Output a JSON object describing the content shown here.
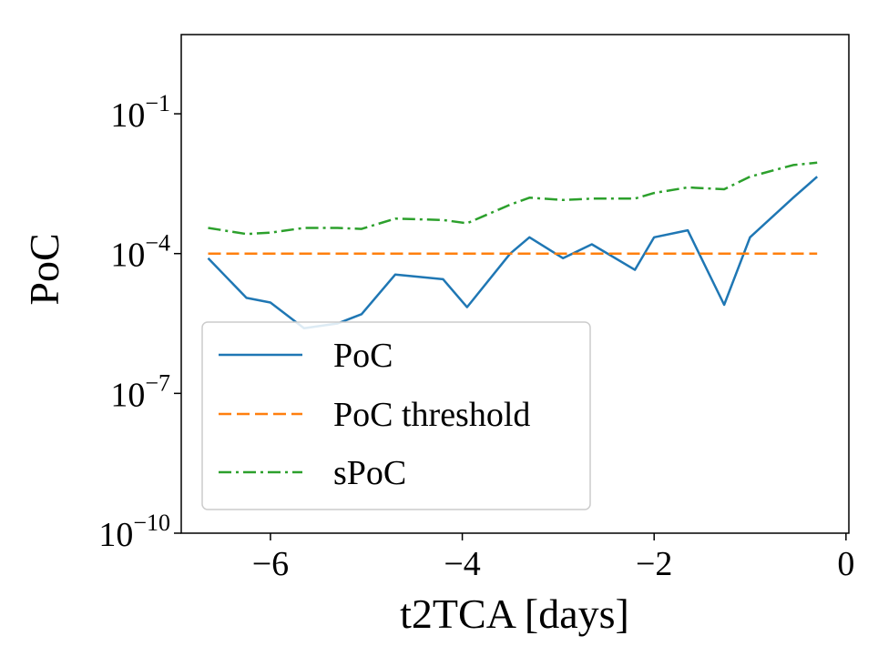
{
  "chart_data": {
    "type": "line",
    "title": "",
    "xlabel": "t2TCA [days]",
    "ylabel": "PoC",
    "yscale": "log",
    "xlim": [
      -6.93,
      0.03
    ],
    "ylim_log10": [
      -10,
      0.7
    ],
    "grid": false,
    "legend_position": "lower-left",
    "x_ticks": [
      {
        "value": -6,
        "label": "−6"
      },
      {
        "value": -4,
        "label": "−4"
      },
      {
        "value": -2,
        "label": "−2"
      },
      {
        "value": 0,
        "label": "0"
      }
    ],
    "y_ticks": [
      {
        "exp": -1,
        "base": "10",
        "sup": "−1"
      },
      {
        "exp": -4,
        "base": "10",
        "sup": "−4"
      },
      {
        "exp": -7,
        "base": "10",
        "sup": "−7"
      },
      {
        "exp": -10,
        "base": "10",
        "sup": "−10"
      }
    ],
    "series": [
      {
        "name": "PoC",
        "color": "#1f77b4",
        "dash": "solid",
        "x": [
          -6.65,
          -6.25,
          -6.0,
          -5.65,
          -5.3,
          -5.05,
          -4.7,
          -4.2,
          -3.95,
          -3.5,
          -3.3,
          -2.95,
          -2.65,
          -2.2,
          -2.0,
          -1.65,
          -1.27,
          -1.0,
          -0.55,
          -0.3
        ],
        "log10_y": [
          -4.1,
          -4.95,
          -5.05,
          -5.6,
          -5.5,
          -5.3,
          -4.45,
          -4.55,
          -5.15,
          -4.0,
          -3.65,
          -4.1,
          -3.8,
          -4.35,
          -3.65,
          -3.5,
          -5.1,
          -3.65,
          -2.8,
          -2.35
        ]
      },
      {
        "name": "PoC threshold",
        "color": "#ff7f0e",
        "dash": "dashed",
        "x": [
          -6.65,
          -0.3
        ],
        "log10_y": [
          -4.0,
          -4.0
        ]
      },
      {
        "name": "sPoC",
        "color": "#2ca02c",
        "dash": "dashdot",
        "x": [
          -6.65,
          -6.25,
          -6.0,
          -5.65,
          -5.3,
          -5.05,
          -4.7,
          -4.2,
          -3.95,
          -3.5,
          -3.3,
          -2.95,
          -2.65,
          -2.2,
          -2.0,
          -1.65,
          -1.27,
          -1.0,
          -0.55,
          -0.3
        ],
        "log10_y": [
          -3.45,
          -3.58,
          -3.55,
          -3.45,
          -3.45,
          -3.47,
          -3.25,
          -3.28,
          -3.35,
          -2.95,
          -2.8,
          -2.85,
          -2.82,
          -2.82,
          -2.7,
          -2.58,
          -2.62,
          -2.35,
          -2.1,
          -2.05
        ]
      }
    ]
  }
}
